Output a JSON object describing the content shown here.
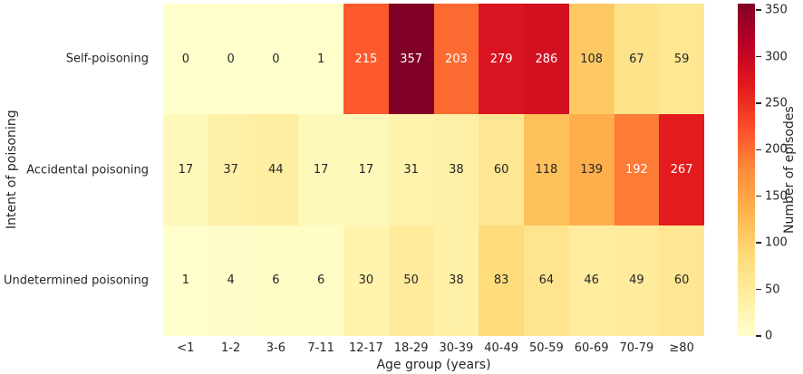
{
  "chart_data": {
    "type": "heatmap",
    "xlabel": "Age group (years)",
    "ylabel": "Intent of poisoning",
    "colorbar_label": "Number of episodes",
    "categories_x": [
      "<1",
      "1-2",
      "3-6",
      "7-11",
      "12-17",
      "18-29",
      "30-39",
      "40-49",
      "50-59",
      "60-69",
      "70-79",
      "≥80"
    ],
    "categories_y": [
      "Self-poisoning",
      "Accidental poisoning",
      "Undetermined poisoning"
    ],
    "values": [
      [
        0,
        0,
        0,
        1,
        215,
        357,
        203,
        279,
        286,
        108,
        67,
        59
      ],
      [
        17,
        37,
        44,
        17,
        17,
        31,
        38,
        60,
        118,
        139,
        192,
        267
      ],
      [
        1,
        4,
        6,
        6,
        30,
        50,
        38,
        83,
        64,
        46,
        49,
        60
      ]
    ],
    "vmin": 0,
    "vmax": 357,
    "colorbar_ticks": [
      0,
      50,
      100,
      150,
      200,
      250,
      300,
      350
    ],
    "colormap": "YlOrRd",
    "colormap_stops": [
      "#ffffcc",
      "#ffeda0",
      "#fed976",
      "#feb24c",
      "#fd8d3c",
      "#fc4e2a",
      "#e31a1c",
      "#bd0026",
      "#800026"
    ],
    "annotation_color_dark": "#262626",
    "annotation_color_light": "#ffffff",
    "grid": false,
    "legend_position": "right-colorbar"
  }
}
